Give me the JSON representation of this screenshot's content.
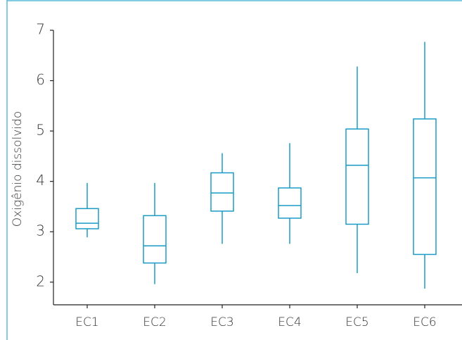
{
  "chart_data": {
    "type": "box",
    "y_label": "Oxigênio dissolvido",
    "categories": [
      "EC1",
      "EC2",
      "EC3",
      "EC4",
      "EC5",
      "EC6"
    ],
    "color": "#1a9bc7",
    "min": [
      2.89,
      1.96,
      2.76,
      2.76,
      2.18,
      1.87
    ],
    "q1": [
      3.06,
      2.38,
      3.41,
      3.27,
      3.15,
      2.55
    ],
    "median": [
      3.17,
      2.72,
      3.77,
      3.52,
      4.32,
      4.07
    ],
    "q3": [
      3.46,
      3.32,
      4.17,
      3.87,
      5.04,
      5.24
    ],
    "max": [
      3.97,
      3.97,
      4.56,
      4.76,
      6.28,
      6.77
    ],
    "ylim": [
      1.55,
      7
    ],
    "yticks": [
      2,
      3,
      4,
      5,
      6,
      7
    ]
  }
}
